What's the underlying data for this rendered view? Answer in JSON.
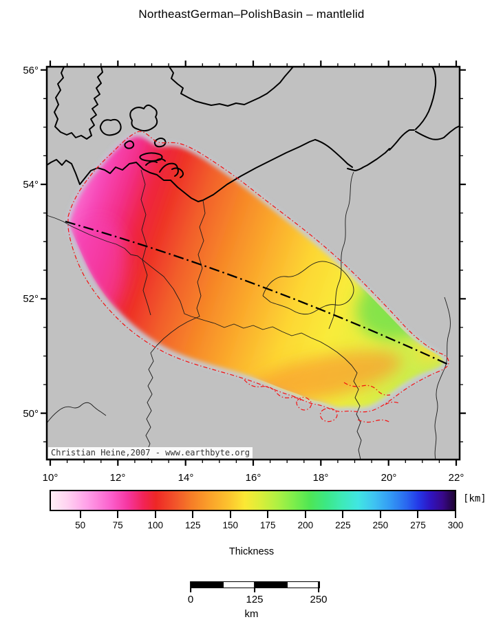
{
  "title": "NortheastGerman–PolishBasin – mantlelid",
  "map": {
    "y_axis": {
      "ticks": [
        "56°",
        "54°",
        "52°",
        "50°"
      ]
    },
    "x_axis": {
      "ticks": [
        "10°",
        "12°",
        "14°",
        "16°",
        "18°",
        "20°",
        "22°"
      ]
    },
    "attribution": "Christian Heine,2007 - www.earthbyte.org",
    "land_color": "#c1c1c1",
    "coastline_color": "#000000",
    "basin_outline_color": "#f50f0f",
    "transect_color": "#000000"
  },
  "colorbar": {
    "label": "Thickness",
    "unit": "[km]",
    "min": 30,
    "max": 300,
    "ticks": [
      "50",
      "75",
      "100",
      "125",
      "150",
      "175",
      "200",
      "225",
      "250",
      "275",
      "300"
    ],
    "colors": [
      "#ffeff6",
      "#ff9fe8",
      "#f636a0",
      "#ee2726",
      "#f67f27",
      "#fcc32e",
      "#fce834",
      "#aff043",
      "#4fe654",
      "#3eeab6",
      "#3fc3f2",
      "#2a68f0",
      "#2f14c0",
      "#1e0433"
    ]
  },
  "scalebar": {
    "labels": [
      "0",
      "125",
      "250"
    ],
    "unit": "km",
    "length_km": 250
  },
  "chart_data": {
    "type": "map",
    "title": "NortheastGerman–PolishBasin – mantlelid",
    "variable": "mantle lid thickness",
    "units": "km",
    "lon_range_deg": [
      9.9,
      22.1
    ],
    "lat_range_deg": [
      49.2,
      56.1
    ],
    "colorbar": {
      "min": 30,
      "max": 300,
      "tick_interval": 25
    },
    "basin_extent_lonlat": {
      "west_tip": [
        10.45,
        53.35
      ],
      "east_tip": [
        21.8,
        50.85
      ]
    },
    "transect_endpoints_lonlat": [
      [
        10.45,
        53.35
      ],
      [
        21.8,
        50.85
      ]
    ],
    "thickness_estimate_km": {
      "western_lobe": 75,
      "central_axis": 110,
      "eastern_lobe": 170
    }
  }
}
